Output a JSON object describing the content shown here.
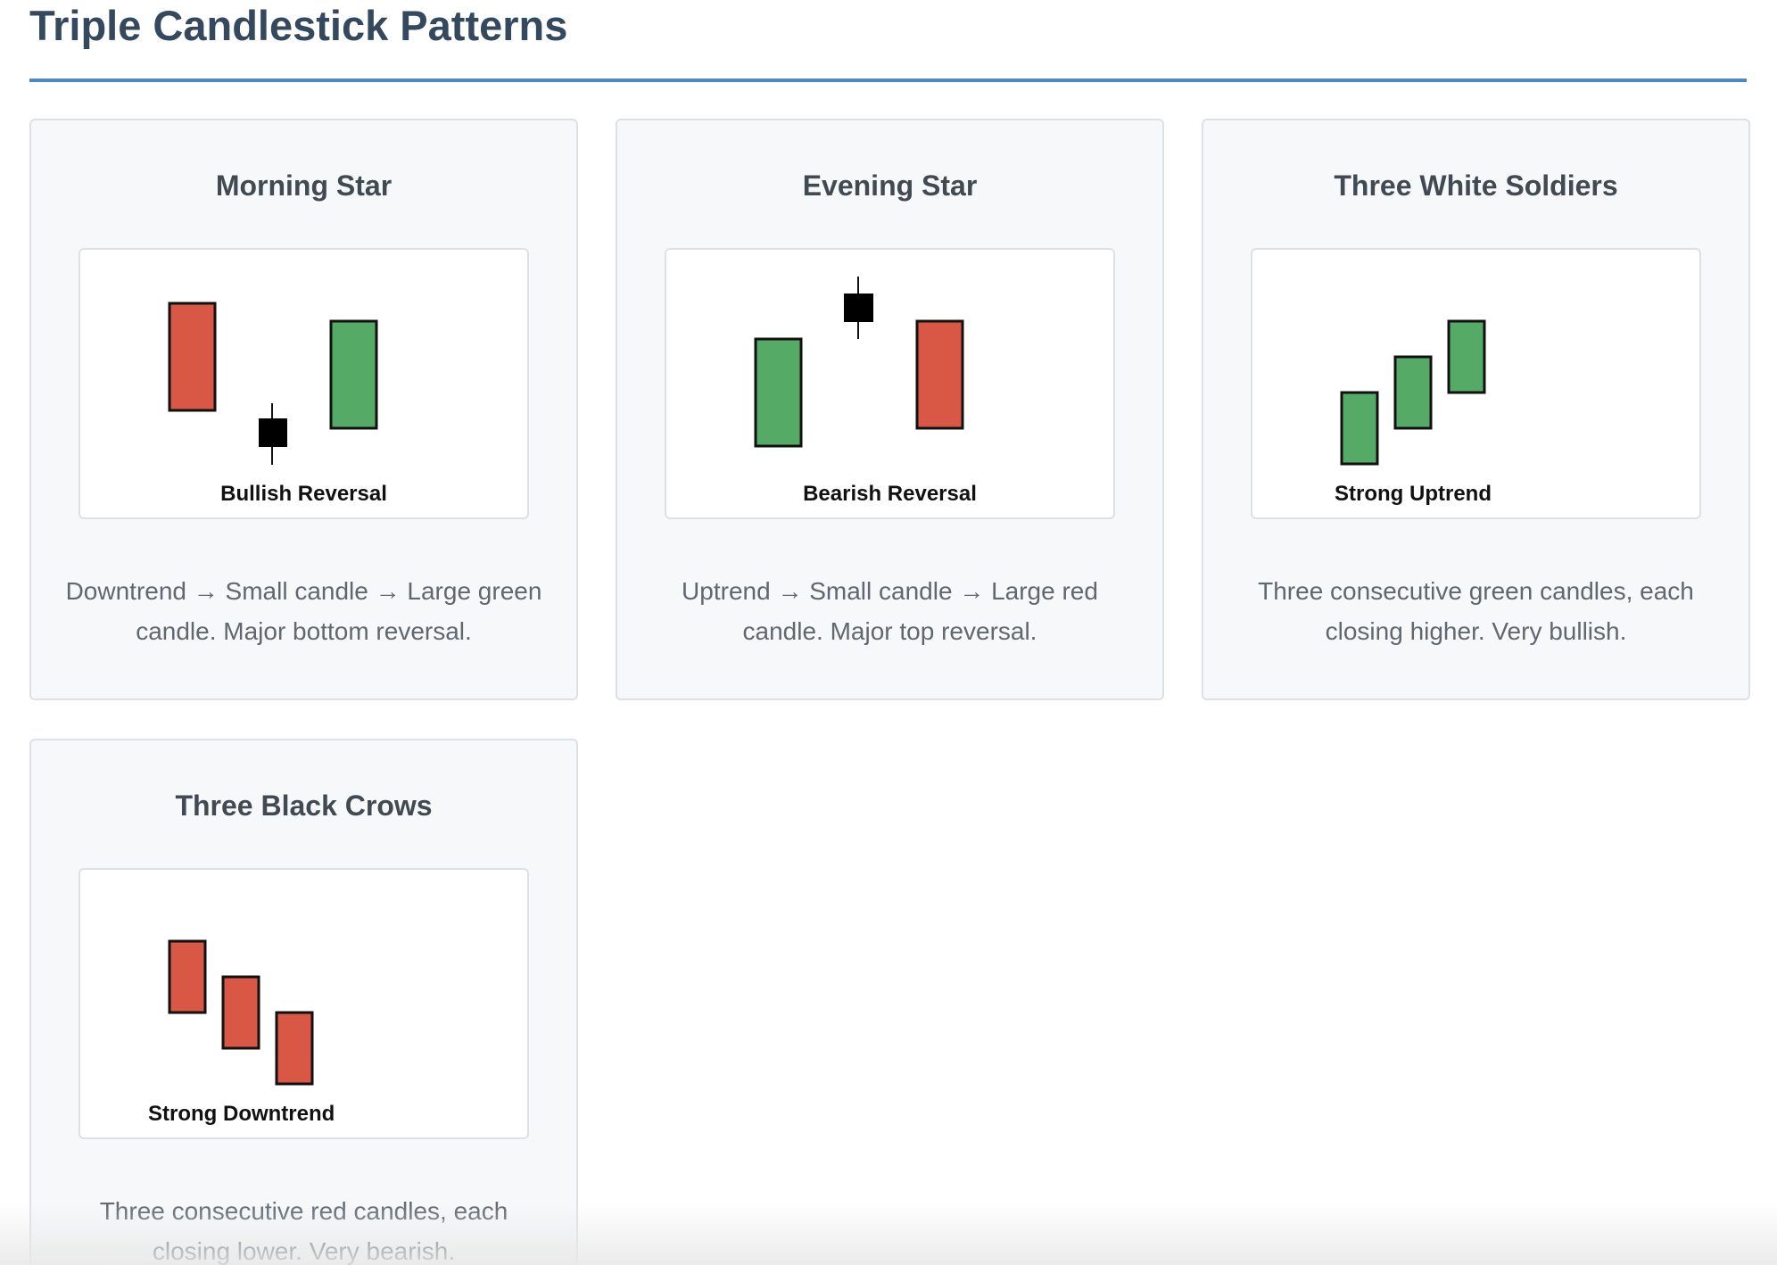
{
  "page": {
    "title": "Triple Candlestick Patterns"
  },
  "colors": {
    "title": "#34495e",
    "rule": "#4a88c8",
    "bull": "#55ab66",
    "bear": "#d95745",
    "neutral": "#000000",
    "outline": "#111111"
  },
  "cards": [
    {
      "title": "Morning Star",
      "label": "Bullish Reversal",
      "description": "Downtrend → Small candle → Large green candle. Major bottom reversal.",
      "candles": [
        "bear-large",
        "small-doji",
        "bull-large"
      ]
    },
    {
      "title": "Evening Star",
      "label": "Bearish Reversal",
      "description": "Uptrend → Small candle → Large red candle. Major top reversal.",
      "candles": [
        "bull-large",
        "small-doji",
        "bear-large"
      ]
    },
    {
      "title": "Three White Soldiers",
      "label": "Strong Uptrend",
      "description": "Three consecutive green candles, each closing higher. Very bullish.",
      "candles": [
        "bull",
        "bull",
        "bull"
      ]
    },
    {
      "title": "Three Black Crows",
      "label": "Strong Downtrend",
      "description": "Three consecutive red candles, each closing lower. Very bearish.",
      "candles": [
        "bear",
        "bear",
        "bear"
      ]
    }
  ]
}
